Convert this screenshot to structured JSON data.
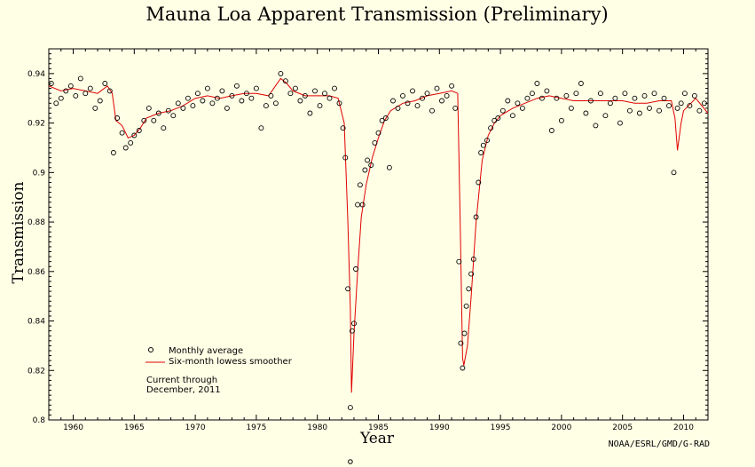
{
  "chart_data": {
    "type": "scatter",
    "title": "Mauna Loa Apparent Transmission (Preliminary)",
    "xlabel": "Year",
    "ylabel": "Transmission",
    "xlim": [
      1958,
      2012
    ],
    "ylim": [
      0.8,
      0.95
    ],
    "x_ticks": [
      1960,
      1965,
      1970,
      1975,
      1980,
      1985,
      1990,
      1995,
      2000,
      2005,
      2010
    ],
    "y_ticks": [
      0.8,
      0.82,
      0.84,
      0.86,
      0.88,
      0.9,
      0.92,
      0.94
    ],
    "grid": false,
    "legend_position": "lower-left",
    "series": [
      {
        "name": "Monthly average",
        "marker": "open-circle",
        "color": "#000000"
      },
      {
        "name": "Six-month lowess smoother",
        "marker": "line",
        "color": "#e00000"
      }
    ],
    "annotation": {
      "line1": "Current through",
      "line2": "December, 2011"
    },
    "credit": "NOAA/ESRL/GMD/G-RAD",
    "smoother_points": [
      [
        1958.0,
        0.935
      ],
      [
        1959.0,
        0.933
      ],
      [
        1960.0,
        0.934
      ],
      [
        1961.0,
        0.933
      ],
      [
        1962.0,
        0.932
      ],
      [
        1962.8,
        0.935
      ],
      [
        1963.2,
        0.932
      ],
      [
        1963.5,
        0.921
      ],
      [
        1964.0,
        0.919
      ],
      [
        1964.5,
        0.914
      ],
      [
        1965.0,
        0.915
      ],
      [
        1965.5,
        0.918
      ],
      [
        1966.0,
        0.922
      ],
      [
        1967.0,
        0.924
      ],
      [
        1968.0,
        0.925
      ],
      [
        1969.0,
        0.927
      ],
      [
        1970.0,
        0.93
      ],
      [
        1971.0,
        0.931
      ],
      [
        1972.0,
        0.93
      ],
      [
        1973.0,
        0.931
      ],
      [
        1974.0,
        0.932
      ],
      [
        1975.0,
        0.932
      ],
      [
        1976.0,
        0.931
      ],
      [
        1977.0,
        0.938
      ],
      [
        1977.5,
        0.936
      ],
      [
        1978.0,
        0.933
      ],
      [
        1979.0,
        0.931
      ],
      [
        1980.0,
        0.931
      ],
      [
        1981.0,
        0.931
      ],
      [
        1981.7,
        0.93
      ],
      [
        1982.2,
        0.92
      ],
      [
        1982.5,
        0.88
      ],
      [
        1982.7,
        0.845
      ],
      [
        1982.8,
        0.811
      ],
      [
        1983.0,
        0.835
      ],
      [
        1983.3,
        0.86
      ],
      [
        1983.6,
        0.882
      ],
      [
        1984.0,
        0.895
      ],
      [
        1984.5,
        0.906
      ],
      [
        1985.0,
        0.914
      ],
      [
        1985.5,
        0.921
      ],
      [
        1986.0,
        0.925
      ],
      [
        1987.0,
        0.928
      ],
      [
        1988.0,
        0.929
      ],
      [
        1989.0,
        0.931
      ],
      [
        1990.0,
        0.932
      ],
      [
        1991.0,
        0.933
      ],
      [
        1991.5,
        0.932
      ],
      [
        1991.7,
        0.88
      ],
      [
        1991.9,
        0.825
      ],
      [
        1992.0,
        0.822
      ],
      [
        1992.3,
        0.83
      ],
      [
        1992.6,
        0.85
      ],
      [
        1993.0,
        0.88
      ],
      [
        1993.5,
        0.905
      ],
      [
        1994.0,
        0.915
      ],
      [
        1994.5,
        0.92
      ],
      [
        1995.0,
        0.923
      ],
      [
        1996.0,
        0.926
      ],
      [
        1997.0,
        0.928
      ],
      [
        1998.0,
        0.93
      ],
      [
        1999.0,
        0.931
      ],
      [
        2000.0,
        0.93
      ],
      [
        2001.0,
        0.929
      ],
      [
        2002.0,
        0.929
      ],
      [
        2003.0,
        0.929
      ],
      [
        2004.0,
        0.929
      ],
      [
        2005.0,
        0.929
      ],
      [
        2006.0,
        0.928
      ],
      [
        2007.0,
        0.928
      ],
      [
        2008.0,
        0.929
      ],
      [
        2009.0,
        0.929
      ],
      [
        2009.3,
        0.922
      ],
      [
        2009.5,
        0.909
      ],
      [
        2009.8,
        0.92
      ],
      [
        2010.0,
        0.925
      ],
      [
        2011.0,
        0.93
      ],
      [
        2012.0,
        0.924
      ]
    ],
    "monthly_points": [
      [
        1958.2,
        0.936
      ],
      [
        1958.6,
        0.928
      ],
      [
        1959.0,
        0.93
      ],
      [
        1959.4,
        0.933
      ],
      [
        1959.8,
        0.935
      ],
      [
        1960.2,
        0.931
      ],
      [
        1960.6,
        0.938
      ],
      [
        1961.0,
        0.932
      ],
      [
        1961.4,
        0.934
      ],
      [
        1961.8,
        0.926
      ],
      [
        1962.2,
        0.929
      ],
      [
        1962.6,
        0.936
      ],
      [
        1963.0,
        0.933
      ],
      [
        1963.3,
        0.908
      ],
      [
        1963.6,
        0.922
      ],
      [
        1964.0,
        0.916
      ],
      [
        1964.3,
        0.91
      ],
      [
        1964.7,
        0.912
      ],
      [
        1965.0,
        0.915
      ],
      [
        1965.4,
        0.917
      ],
      [
        1965.8,
        0.921
      ],
      [
        1966.2,
        0.926
      ],
      [
        1966.6,
        0.921
      ],
      [
        1967.0,
        0.924
      ],
      [
        1967.4,
        0.918
      ],
      [
        1967.8,
        0.925
      ],
      [
        1968.2,
        0.923
      ],
      [
        1968.6,
        0.928
      ],
      [
        1969.0,
        0.926
      ],
      [
        1969.4,
        0.93
      ],
      [
        1969.8,
        0.927
      ],
      [
        1970.2,
        0.932
      ],
      [
        1970.6,
        0.929
      ],
      [
        1971.0,
        0.934
      ],
      [
        1971.4,
        0.928
      ],
      [
        1971.8,
        0.93
      ],
      [
        1972.2,
        0.933
      ],
      [
        1972.6,
        0.926
      ],
      [
        1973.0,
        0.931
      ],
      [
        1973.4,
        0.935
      ],
      [
        1973.8,
        0.929
      ],
      [
        1974.2,
        0.932
      ],
      [
        1974.6,
        0.93
      ],
      [
        1975.0,
        0.934
      ],
      [
        1975.4,
        0.918
      ],
      [
        1975.8,
        0.927
      ],
      [
        1976.2,
        0.931
      ],
      [
        1976.6,
        0.928
      ],
      [
        1977.0,
        0.94
      ],
      [
        1977.4,
        0.937
      ],
      [
        1977.8,
        0.932
      ],
      [
        1978.2,
        0.934
      ],
      [
        1978.6,
        0.929
      ],
      [
        1979.0,
        0.931
      ],
      [
        1979.4,
        0.924
      ],
      [
        1979.8,
        0.933
      ],
      [
        1980.2,
        0.927
      ],
      [
        1980.6,
        0.932
      ],
      [
        1981.0,
        0.93
      ],
      [
        1981.4,
        0.934
      ],
      [
        1981.8,
        0.928
      ],
      [
        1982.1,
        0.918
      ],
      [
        1982.3,
        0.906
      ],
      [
        1982.5,
        0.853
      ],
      [
        1982.7,
        0.805
      ],
      [
        1982.85,
        0.836
      ],
      [
        1983.0,
        0.839
      ],
      [
        1983.15,
        0.861
      ],
      [
        1983.3,
        0.887
      ],
      [
        1983.5,
        0.895
      ],
      [
        1983.7,
        0.887
      ],
      [
        1983.9,
        0.901
      ],
      [
        1984.1,
        0.905
      ],
      [
        1984.4,
        0.903
      ],
      [
        1984.7,
        0.912
      ],
      [
        1985.0,
        0.916
      ],
      [
        1985.3,
        0.921
      ],
      [
        1985.6,
        0.922
      ],
      [
        1985.9,
        0.902
      ],
      [
        1986.2,
        0.929
      ],
      [
        1986.6,
        0.926
      ],
      [
        1987.0,
        0.931
      ],
      [
        1987.4,
        0.928
      ],
      [
        1987.8,
        0.933
      ],
      [
        1988.2,
        0.927
      ],
      [
        1988.6,
        0.93
      ],
      [
        1989.0,
        0.932
      ],
      [
        1989.4,
        0.925
      ],
      [
        1989.8,
        0.934
      ],
      [
        1990.2,
        0.929
      ],
      [
        1990.6,
        0.931
      ],
      [
        1991.0,
        0.935
      ],
      [
        1991.3,
        0.926
      ],
      [
        1991.6,
        0.864
      ],
      [
        1991.75,
        0.831
      ],
      [
        1991.9,
        0.821
      ],
      [
        1992.05,
        0.835
      ],
      [
        1992.2,
        0.846
      ],
      [
        1992.4,
        0.853
      ],
      [
        1992.6,
        0.859
      ],
      [
        1992.8,
        0.865
      ],
      [
        1993.0,
        0.882
      ],
      [
        1993.2,
        0.896
      ],
      [
        1993.4,
        0.908
      ],
      [
        1993.6,
        0.911
      ],
      [
        1993.9,
        0.913
      ],
      [
        1994.2,
        0.918
      ],
      [
        1994.5,
        0.921
      ],
      [
        1994.8,
        0.922
      ],
      [
        1995.2,
        0.925
      ],
      [
        1995.6,
        0.929
      ],
      [
        1996.0,
        0.923
      ],
      [
        1996.4,
        0.928
      ],
      [
        1996.8,
        0.926
      ],
      [
        1997.2,
        0.93
      ],
      [
        1997.6,
        0.932
      ],
      [
        1998.0,
        0.936
      ],
      [
        1998.4,
        0.93
      ],
      [
        1998.8,
        0.933
      ],
      [
        1999.2,
        0.917
      ],
      [
        1999.6,
        0.93
      ],
      [
        2000.0,
        0.921
      ],
      [
        2000.4,
        0.931
      ],
      [
        2000.8,
        0.926
      ],
      [
        2001.2,
        0.932
      ],
      [
        2001.6,
        0.936
      ],
      [
        2002.0,
        0.924
      ],
      [
        2002.4,
        0.929
      ],
      [
        2002.8,
        0.919
      ],
      [
        2003.2,
        0.932
      ],
      [
        2003.6,
        0.923
      ],
      [
        2004.0,
        0.928
      ],
      [
        2004.4,
        0.93
      ],
      [
        2004.8,
        0.92
      ],
      [
        2005.2,
        0.932
      ],
      [
        2005.6,
        0.925
      ],
      [
        2006.0,
        0.93
      ],
      [
        2006.4,
        0.924
      ],
      [
        2006.8,
        0.931
      ],
      [
        2007.2,
        0.926
      ],
      [
        2007.6,
        0.932
      ],
      [
        2008.0,
        0.925
      ],
      [
        2008.4,
        0.93
      ],
      [
        2008.8,
        0.927
      ],
      [
        2009.2,
        0.9
      ],
      [
        2009.5,
        0.926
      ],
      [
        2009.8,
        0.928
      ],
      [
        2010.1,
        0.932
      ],
      [
        2010.5,
        0.927
      ],
      [
        2010.9,
        0.931
      ],
      [
        2011.3,
        0.925
      ],
      [
        2011.7,
        0.928
      ]
    ],
    "offscale_point": [
      1982.7,
      0.78
    ]
  }
}
